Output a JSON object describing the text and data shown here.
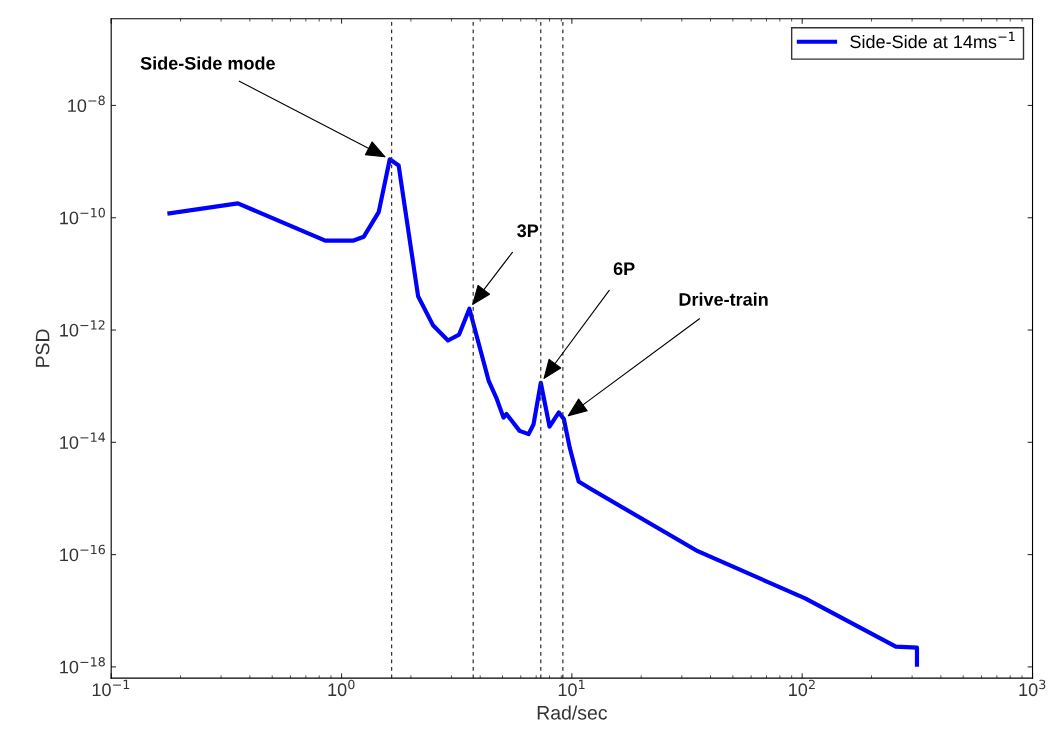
{
  "chart_data": {
    "type": "line",
    "xlabel": "Rad/sec",
    "ylabel": "PSD",
    "log": "xy",
    "grid": false,
    "legend": "top right",
    "xlim": [
      0.1,
      1000
    ],
    "ylim": [
      6.3e-19,
      3.5e-07
    ],
    "xticks": [
      {
        "value": 0.1,
        "label": "10$^{−1}$"
      },
      {
        "value": 1,
        "label": "10$^{0}$"
      },
      {
        "value": 10,
        "label": "10$^{1}$"
      },
      {
        "value": 100,
        "label": "10$^{2}$"
      },
      {
        "value": 1000,
        "label": "10$^{3}$"
      }
    ],
    "yticks": [
      {
        "value": 1e-18,
        "label": "10$^{−18}$"
      },
      {
        "value": 1e-16,
        "label": "10$^{−16}$"
      },
      {
        "value": 1e-14,
        "label": "10$^{−14}$"
      },
      {
        "value": 1e-12,
        "label": "10$^{−12}$"
      },
      {
        "value": 1e-10,
        "label": "10$^{−10}$"
      },
      {
        "value": 1e-08,
        "label": "10$^{−8}$"
      }
    ],
    "series": [
      {
        "name": "Side-Side at 14ms$^{−1}$",
        "color": "#0000ff",
        "line_style": "solid",
        "marker": "none",
        "x": [
          0.179,
          0.355,
          0.85,
          1.12,
          1.25,
          1.45,
          1.62,
          1.77,
          2.15,
          2.5,
          2.9,
          3.24,
          3.59,
          4.35,
          4.7,
          5.05,
          5.2,
          5.93,
          6.49,
          6.82,
          7.33,
          8.0,
          8.78,
          9.23,
          9.8,
          10.7,
          12,
          35.2,
          103,
          255,
          315,
          315
        ],
        "values": [
          1.2e-10,
          1.8e-10,
          3.9e-11,
          3.9e-11,
          4.6e-11,
          1.26e-10,
          1.1e-09,
          8.5e-10,
          4e-12,
          1.2e-12,
          6.5e-13,
          8.3e-13,
          2.4e-12,
          1.26e-13,
          6.2e-14,
          2.75e-14,
          3.2e-14,
          1.6e-14,
          1.4e-14,
          2.1e-14,
          1.15e-13,
          1.9e-14,
          3.4e-14,
          2.6e-14,
          7.9e-15,
          2e-15,
          1.5e-15,
          1.15e-16,
          1.66e-17,
          2.3e-18,
          2.2e-18,
          1.1e-18
        ]
      }
    ],
    "ref_lines": [
      {
        "axis": "x",
        "value": 1.65,
        "color": "#333333",
        "line_style": "dashed"
      },
      {
        "axis": "x",
        "value": 3.73,
        "color": "#333333",
        "line_style": "dashed"
      },
      {
        "axis": "x",
        "value": 7.33,
        "color": "#333333",
        "line_style": "dashed"
      },
      {
        "axis": "x",
        "value": 9.14,
        "color": "#333333",
        "line_style": "dashed"
      }
    ],
    "annotations": [
      {
        "text": "Side-Side mode",
        "x": 1.62,
        "y": 1.1e-09
      },
      {
        "text": "3P",
        "x": 3.59,
        "y": 2.4e-12
      },
      {
        "text": "6P",
        "x": 7.33,
        "y": 1.15e-13
      },
      {
        "text": "Drive-train",
        "x": 9.23,
        "y": 2.6e-14
      }
    ]
  }
}
